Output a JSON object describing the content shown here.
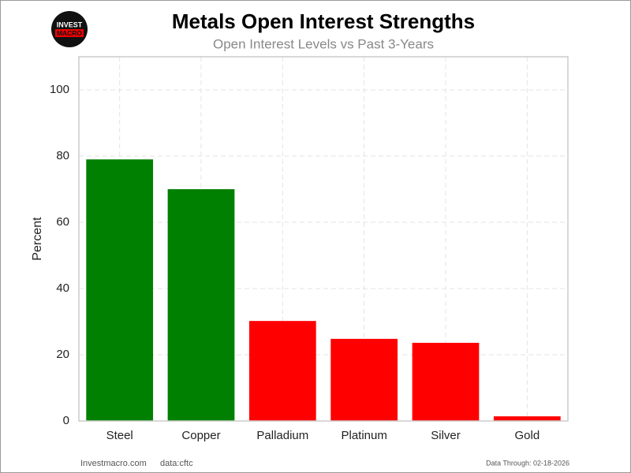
{
  "chart_data": {
    "type": "bar",
    "title": "Metals Open Interest Strengths",
    "subtitle": "Open Interest Levels vs Past 3-Years",
    "y_label": "Percent",
    "categories": [
      "Steel",
      "Copper",
      "Palladium",
      "Platinum",
      "Silver",
      "Gold"
    ],
    "values": [
      79,
      70,
      30.2,
      24.8,
      23.6,
      1.4
    ],
    "colors": [
      "#008000",
      "#008000",
      "#ff0000",
      "#ff0000",
      "#ff0000",
      "#ff0000"
    ],
    "ylim": [
      0,
      110
    ],
    "yticks": [
      0,
      20,
      40,
      60,
      80,
      100
    ],
    "grid": true,
    "logo": [
      "INVEST",
      "MACRO"
    ],
    "footer": {
      "site": "Investmacro.com",
      "source": "data:cftc",
      "date": "Data Through: 02-18-2026"
    }
  }
}
